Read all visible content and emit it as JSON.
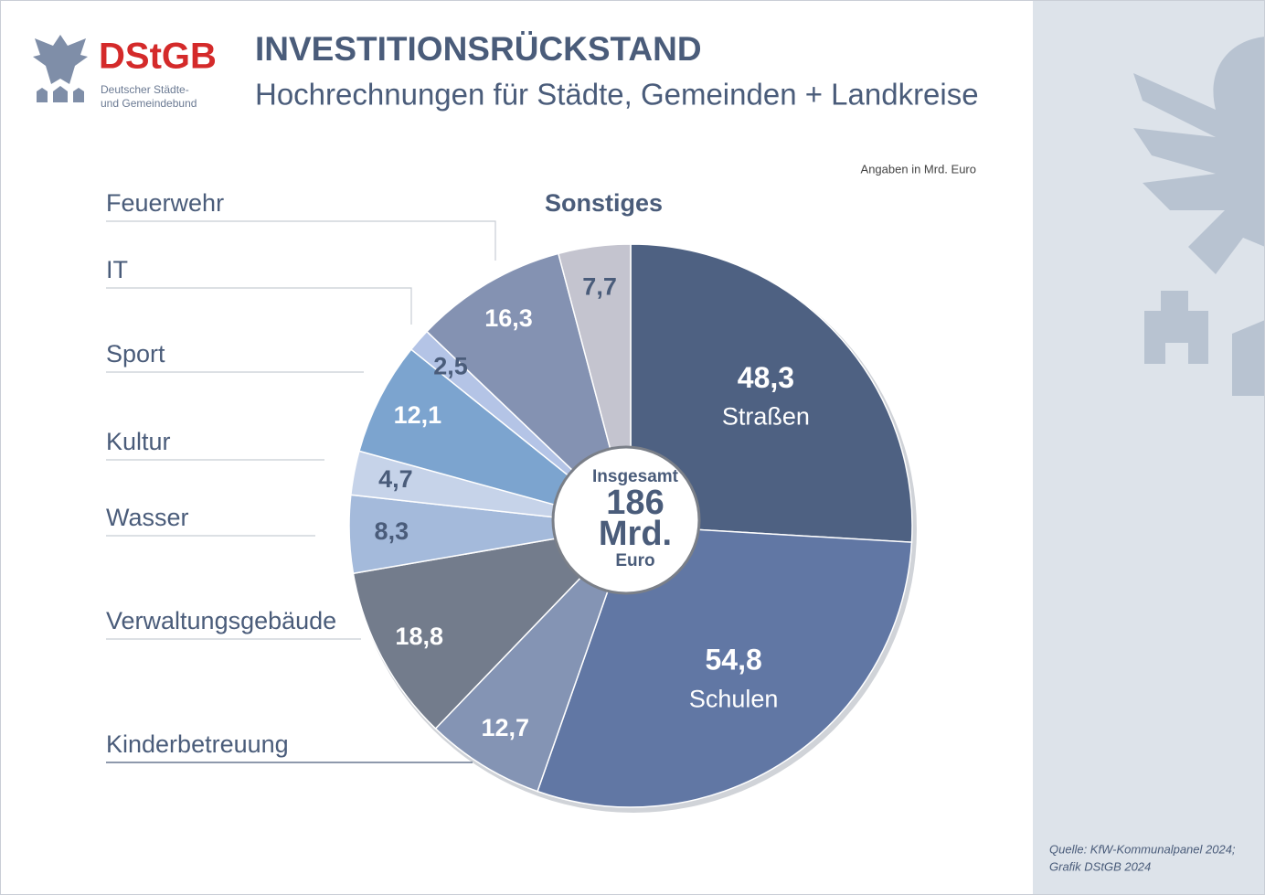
{
  "chart_data": {
    "type": "pie",
    "title": "INVESTITIONSRÜCKSTAND",
    "subtitle": "Hochrechnungen für Städte, Gemeinden + Landkreise",
    "note": "Angaben in Mrd. Euro",
    "logo": {
      "abbr": "DStGB",
      "line1": "Deutscher Städte-",
      "line2": "und Gemeindebund"
    },
    "source": [
      "Quelle: KfW-Kommunalpanel 2024;",
      "Grafik DStGB 2024"
    ],
    "center": {
      "label": "Insgesamt",
      "total": 186,
      "unit": "Mrd.",
      "currency": "Euro"
    },
    "categories": [
      "Straßen",
      "Schulen",
      "Kinderbetreuung",
      "Verwaltungsgebäude",
      "Wasser",
      "Kultur",
      "Sport",
      "IT",
      "Feuerwehr",
      "Sonstiges"
    ],
    "values": [
      48.3,
      54.8,
      12.7,
      18.8,
      8.3,
      4.7,
      12.1,
      2.5,
      16.3,
      7.7
    ],
    "value_labels": [
      "48,3",
      "54,8",
      "12,7",
      "18,8",
      "8,3",
      "4,7",
      "12,1",
      "2,5",
      "16,3",
      "7,7"
    ],
    "colors": [
      "#4e6182",
      "#6177a4",
      "#8494b4",
      "#737c8c",
      "#a4badb",
      "#c6d3e9",
      "#7ca4cf",
      "#b4c4e6",
      "#8492b2",
      "#c4c4cf"
    ]
  }
}
